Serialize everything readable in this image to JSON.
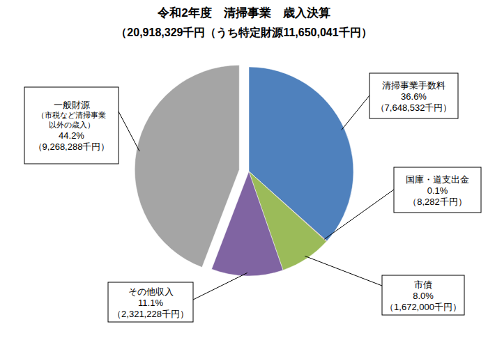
{
  "chart_data": {
    "type": "pie",
    "title": "令和2年度　清掃事業　歳入決算",
    "subtitle": "（20,918,329千円（うち特定財源11,650,041千円）",
    "categories": [
      "清掃事業手数料",
      "国庫・道支出金",
      "市債",
      "その他収入",
      "一般財源"
    ],
    "values": [
      36.6,
      0.1,
      8.0,
      11.1,
      44.2
    ],
    "value_labels": [
      "36.6%",
      "0.1%",
      "8.0%",
      "11.1%",
      "44.2%"
    ],
    "amounts": [
      "（7,648,532千円）",
      "（8,282千円）",
      "（1,672,000千円）",
      "（2,321,228千円）",
      "（9,268,288千円）"
    ],
    "notes": [
      null,
      null,
      null,
      null,
      [
        "（市税など清掃事業",
        "以外の歳入）"
      ]
    ],
    "colors": [
      "#4f81bd",
      "#c0504d",
      "#9bbb59",
      "#8064a2",
      "#a5a5a5"
    ],
    "data_labels": true
  }
}
